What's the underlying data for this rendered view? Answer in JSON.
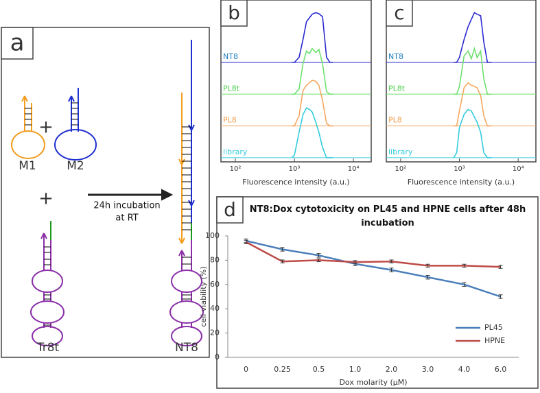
{
  "diagram": {
    "panel": "a",
    "m1": "M1",
    "m2": "M2",
    "plus1": "+",
    "plus2": "+",
    "tr8t": "Tr8t",
    "nt8": "NT8",
    "step1": "24h incubation",
    "step2": "at RT"
  },
  "chart_data": [
    {
      "type": "ridgeline",
      "panel": "b",
      "xlabel": "Fluorescence intensity (a.u.)",
      "xscale": "log",
      "xlim": [
        57,
        20000
      ],
      "xticks": [
        {
          "value": 100,
          "label": "10²"
        },
        {
          "value": 1000,
          "label": "10³"
        },
        {
          "value": 10000,
          "label": "10⁴"
        }
      ],
      "x": [
        900,
        1000,
        1200,
        1400,
        1600,
        1800,
        2000,
        2300,
        2600,
        3000,
        3500,
        4000,
        4500
      ],
      "series": [
        {
          "name": "NT8",
          "color": "#2a2ad0",
          "label_color": "#1f7fc0",
          "values": [
            0,
            0,
            10,
            45,
            80,
            88,
            95,
            98,
            96,
            90,
            10,
            0,
            0
          ]
        },
        {
          "name": "PL8t",
          "color": "#6ee06e",
          "label_color": "#4fcf4f",
          "values": [
            0,
            0,
            10,
            60,
            85,
            80,
            90,
            82,
            88,
            60,
            5,
            0,
            0
          ]
        },
        {
          "name": "PL8",
          "color": "#f5a860",
          "label_color": "#f0a050",
          "values": [
            0,
            0,
            20,
            70,
            80,
            85,
            90,
            88,
            80,
            50,
            5,
            0,
            0
          ]
        },
        {
          "name": "library",
          "color": "#33ccdd",
          "label_color": "#33ccdd",
          "values": [
            0,
            5,
            50,
            85,
            98,
            95,
            90,
            70,
            50,
            20,
            0,
            0,
            0
          ]
        }
      ]
    },
    {
      "type": "ridgeline",
      "panel": "c",
      "xlabel": "Fluorescence intensity (a.u.)",
      "xscale": "log",
      "xlim": [
        57,
        20000
      ],
      "xticks": [
        {
          "value": 100,
          "label": "10²"
        },
        {
          "value": 1000,
          "label": "10³"
        },
        {
          "value": 10000,
          "label": "10⁴"
        }
      ],
      "x": [
        800,
        900,
        1000,
        1200,
        1400,
        1600,
        1800,
        2000,
        2300,
        2600,
        3000,
        3500
      ],
      "series": [
        {
          "name": "NT8",
          "color": "#2a2ad0",
          "label_color": "#1f7fc0",
          "values": [
            0,
            0,
            10,
            45,
            70,
            85,
            98,
            95,
            92,
            40,
            0,
            0
          ]
        },
        {
          "name": "PL8t",
          "color": "#6ee06e",
          "label_color": "#4fcf4f",
          "values": [
            0,
            0,
            15,
            75,
            85,
            70,
            90,
            72,
            85,
            30,
            0,
            0
          ]
        },
        {
          "name": "PL8",
          "color": "#f5a860",
          "label_color": "#f0a050",
          "values": [
            0,
            0,
            30,
            75,
            85,
            80,
            78,
            75,
            60,
            20,
            0,
            0
          ]
        },
        {
          "name": "library",
          "color": "#33ccdd",
          "label_color": "#33ccdd",
          "values": [
            0,
            10,
            60,
            85,
            95,
            92,
            80,
            70,
            50,
            10,
            0,
            0
          ]
        }
      ]
    },
    {
      "type": "line",
      "panel": "d",
      "title": "NT8:Dox cytotoxicity on PL45 and HPNE cells after 48h incubation",
      "xlabel": "Dox molarity (μM)",
      "ylabel": "cell viability (%)",
      "categories": [
        "0",
        "0.25",
        "0.5",
        "1.0",
        "2.0",
        "3.0",
        "4.0",
        "6.0"
      ],
      "ylim": [
        0,
        100
      ],
      "yticks": [
        0,
        20,
        40,
        60,
        80,
        100
      ],
      "legend": "lower-right",
      "series": [
        {
          "name": "PL45",
          "color": "#4a7ebb",
          "values": [
            96,
            89,
            84,
            77,
            72,
            66,
            60,
            50
          ],
          "errors": [
            1.5,
            1.5,
            1.5,
            1.5,
            1.5,
            1.5,
            1.5,
            1.5
          ]
        },
        {
          "name": "HPNE",
          "color": "#be4b48",
          "values": [
            95,
            79,
            80,
            78.5,
            79,
            75.5,
            75.5,
            74.5
          ],
          "errors": [
            1.5,
            1.2,
            1.2,
            1.2,
            1.2,
            1.2,
            1.2,
            1.2
          ]
        }
      ]
    }
  ]
}
